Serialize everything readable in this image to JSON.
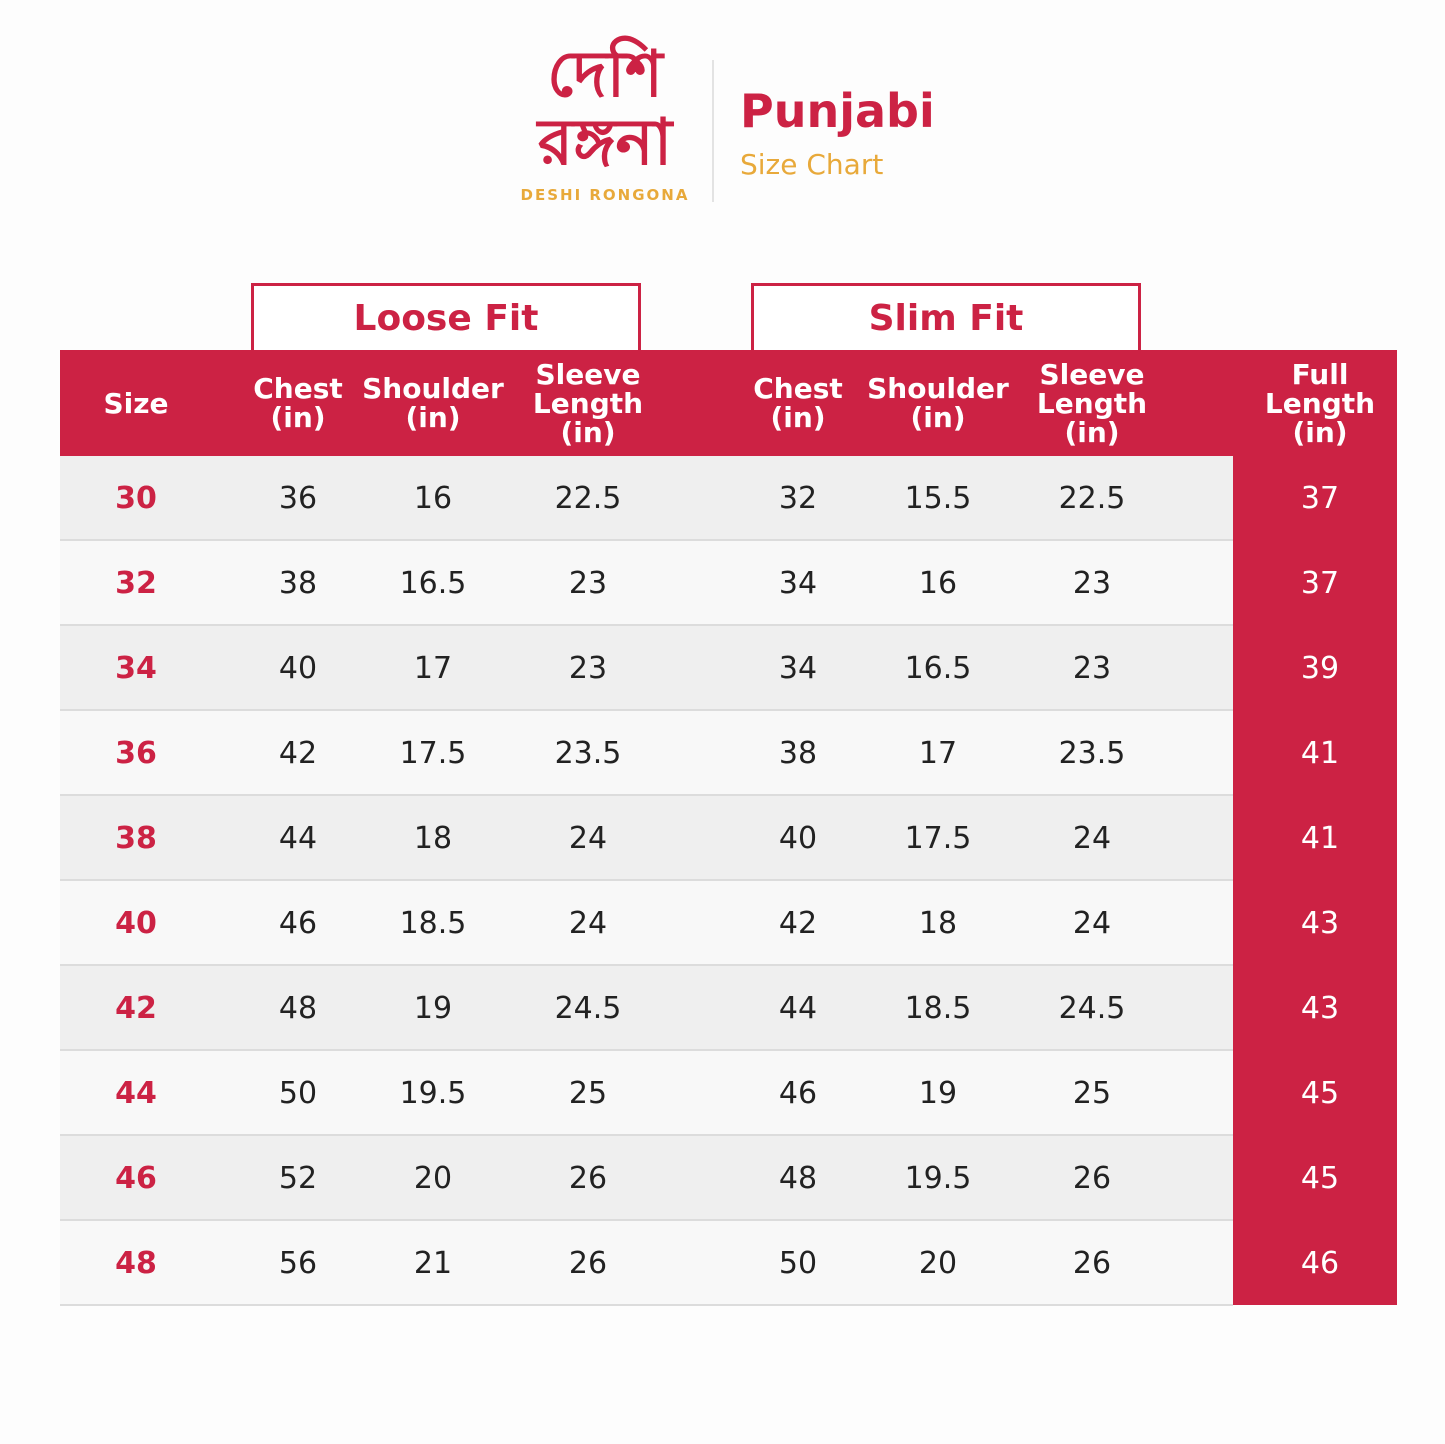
{
  "logo": {
    "line1": "দেশি",
    "line2": "রঙ্গনা",
    "brand": "DESHI RONGONA"
  },
  "header": {
    "title": "Punjabi",
    "subtitle": "Size Chart"
  },
  "groups": [
    "Loose Fit",
    "Slim Fit"
  ],
  "table": {
    "columns": [
      "Size",
      "Chest (in)",
      "Shoulder (in)",
      "Sleeve Length (in)",
      "Chest (in)",
      "Shoulder (in)",
      "Sleeve Length (in)",
      "Full Length (in)"
    ],
    "rows": [
      [
        30,
        36,
        16,
        22.5,
        32,
        15.5,
        22.5,
        37
      ],
      [
        32,
        38,
        16.5,
        23,
        34,
        16,
        23,
        37
      ],
      [
        34,
        40,
        17,
        23,
        34,
        16.5,
        23,
        39
      ],
      [
        36,
        42,
        17.5,
        23.5,
        38,
        17,
        23.5,
        41
      ],
      [
        38,
        44,
        18,
        24,
        40,
        17.5,
        24,
        41
      ],
      [
        40,
        46,
        18.5,
        24,
        42,
        18,
        24,
        43
      ],
      [
        42,
        48,
        19,
        24.5,
        44,
        18.5,
        24.5,
        43
      ],
      [
        44,
        50,
        19.5,
        25,
        46,
        19,
        25,
        45
      ],
      [
        46,
        52,
        20,
        26,
        48,
        19.5,
        26,
        45
      ],
      [
        48,
        56,
        21,
        26,
        50,
        20,
        26,
        46
      ]
    ]
  }
}
